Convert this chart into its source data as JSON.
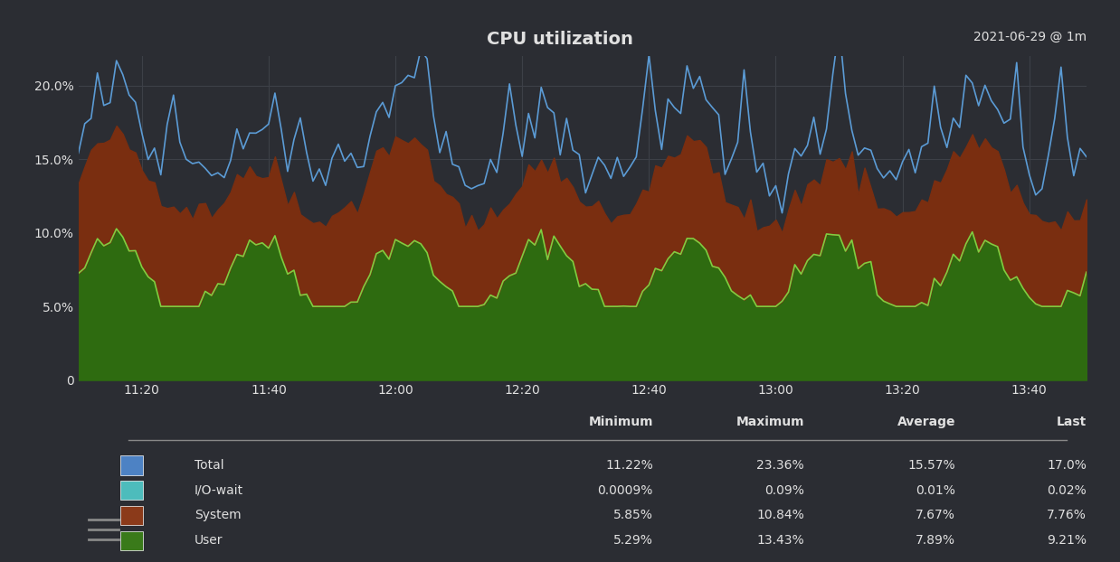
{
  "title": "CPU utilization",
  "date_label": "2021-06-29 @ 1m",
  "bg_color": "#2b2d33",
  "grid_color": "#3d4047",
  "text_color": "#e0e0e0",
  "ylabel_ticks": [
    "0",
    "5.0%",
    "10.0%",
    "15.0%",
    "20.0%"
  ],
  "ytick_vals": [
    0,
    5.0,
    10.0,
    15.0,
    20.0
  ],
  "ylim": [
    0,
    22
  ],
  "xtick_labels": [
    "11:20",
    "11:40",
    "12:00",
    "12:20",
    "12:40",
    "13:00",
    "13:20",
    "13:40"
  ],
  "tick_positions": [
    10,
    30,
    50,
    70,
    90,
    110,
    130,
    150
  ],
  "colors": {
    "total_line": "#5b9bd5",
    "iowait_line": "#4dbcbc",
    "system_fill": "#7a2e10",
    "user_fill": "#2e6b10",
    "user_line": "#7ecf40"
  },
  "table": {
    "col_labels": [
      "Minimum",
      "Maximum",
      "Average",
      "Last"
    ],
    "rows": [
      [
        "Total",
        "11.22%",
        "23.36%",
        "15.57%",
        "17.0%"
      ],
      [
        "I/O-wait",
        "0.0009%",
        "0.09%",
        "0.01%",
        "0.02%"
      ],
      [
        "System",
        "5.85%",
        "10.84%",
        "7.67%",
        "7.76%"
      ],
      [
        "User",
        "5.29%",
        "13.43%",
        "7.89%",
        "9.21%"
      ]
    ],
    "row_colors": [
      "#4d82c4",
      "#4dbcbc",
      "#8b3a1a",
      "#3a7a1a"
    ]
  },
  "n_points": 160
}
